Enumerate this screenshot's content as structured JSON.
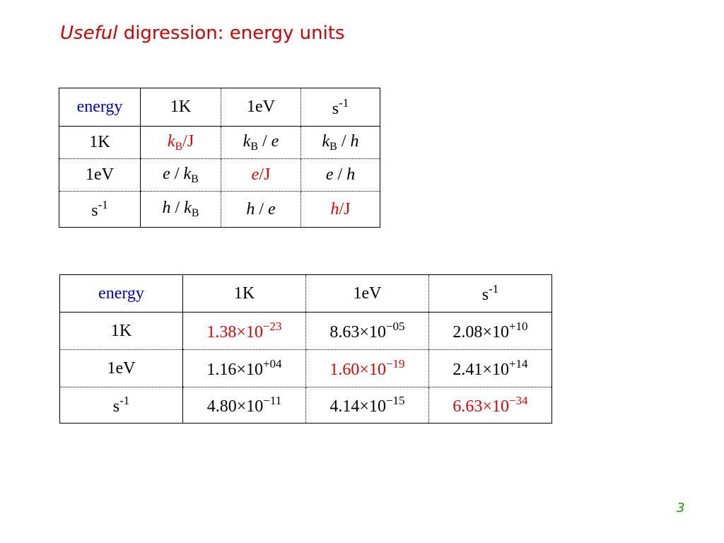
{
  "title": {
    "italic": "Useful",
    "rest": " digression: energy units"
  },
  "table1": {
    "header": [
      [
        "energy"
      ],
      [
        "1K"
      ],
      [
        "1eV"
      ],
      [
        "s",
        "-1"
      ]
    ],
    "rows": [
      [
        [
          "1K"
        ],
        [
          "k",
          "B",
          "/J"
        ],
        [
          "k",
          "B",
          " / ",
          "e"
        ],
        [
          "k",
          "B",
          " / ",
          "h"
        ]
      ],
      [
        [
          "1eV"
        ],
        [
          "e",
          " / ",
          "k",
          "B"
        ],
        [
          "e",
          "/J"
        ],
        [
          "e",
          " / ",
          "h"
        ]
      ],
      [
        [
          "s",
          "-1"
        ],
        [
          "h",
          " / ",
          "k",
          "B"
        ],
        [
          "h",
          " / ",
          "e"
        ],
        [
          "h",
          "/J"
        ]
      ]
    ]
  },
  "table2": {
    "header": [
      [
        "energy"
      ],
      [
        "1K"
      ],
      [
        "1eV"
      ],
      [
        "s",
        "-1"
      ]
    ],
    "rows": [
      [
        [
          "1K"
        ],
        [
          "1.38",
          "×10",
          "−23"
        ],
        [
          "8.63",
          "×10",
          "−05"
        ],
        [
          "2.08",
          "×10",
          "+10"
        ]
      ],
      [
        [
          "1eV"
        ],
        [
          "1.16",
          "×10",
          "+04"
        ],
        [
          "1.60",
          "×10",
          "−19"
        ],
        [
          "2.41",
          "×10",
          "+14"
        ]
      ],
      [
        [
          "s",
          "-1"
        ],
        [
          "4.80",
          "×10",
          "−11"
        ],
        [
          "4.14",
          "×10",
          "−15"
        ],
        [
          "6.63",
          "×10",
          "−34"
        ]
      ]
    ]
  },
  "page_number": "3"
}
